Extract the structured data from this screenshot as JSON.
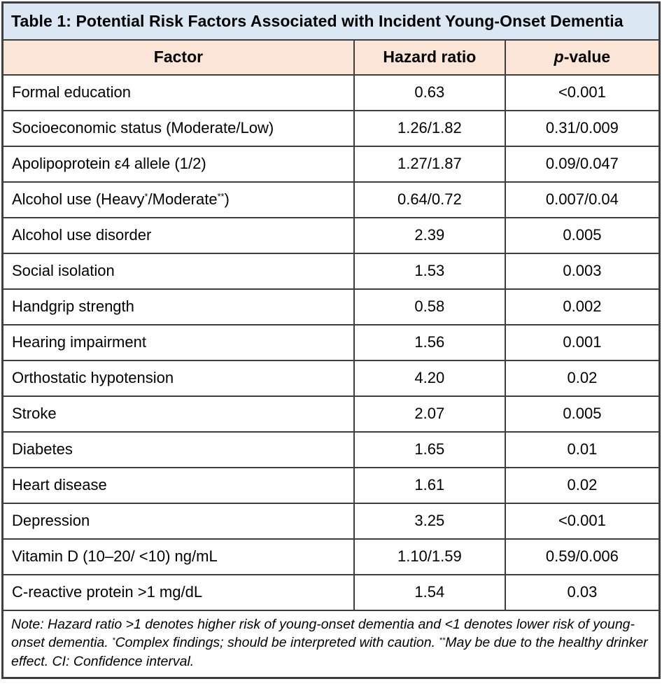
{
  "title": "Table 1: Potential Risk Factors Associated with Incident Young-Onset Dementia",
  "columns": {
    "factor": "Factor",
    "hazard": "Hazard ratio",
    "p_italic": "p",
    "p_rest": "-value"
  },
  "rows": [
    {
      "factor": "Formal education",
      "hazard": "0.63",
      "p": "<0.001"
    },
    {
      "factor": "Socioeconomic status (Moderate/Low)",
      "hazard": "1.26/1.82",
      "p": "0.31/0.009"
    },
    {
      "factor": "Apolipoprotein ε4 allele (1/2)",
      "hazard": "1.27/1.87",
      "p": "0.09/0.047"
    },
    {
      "factor": "Alcohol use (Heavy^*^/Moderate^**^)",
      "hazard": "0.64/0.72",
      "p": "0.007/0.04"
    },
    {
      "factor": "Alcohol use disorder",
      "hazard": "2.39",
      "p": "0.005"
    },
    {
      "factor": "Social isolation",
      "hazard": "1.53",
      "p": "0.003"
    },
    {
      "factor": "Handgrip strength",
      "hazard": "0.58",
      "p": "0.002"
    },
    {
      "factor": "Hearing impairment",
      "hazard": "1.56",
      "p": "0.001"
    },
    {
      "factor": "Orthostatic hypotension",
      "hazard": "4.20",
      "p": "0.02"
    },
    {
      "factor": "Stroke",
      "hazard": "2.07",
      "p": "0.005"
    },
    {
      "factor": "Diabetes",
      "hazard": "1.65",
      "p": "0.01"
    },
    {
      "factor": "Heart disease",
      "hazard": "1.61",
      "p": "0.02"
    },
    {
      "factor": "Depression",
      "hazard": "3.25",
      "p": "<0.001"
    },
    {
      "factor": "Vitamin D (10–20/ <10) ng/mL",
      "hazard": "1.10/1.59",
      "p": "0.59/0.006"
    },
    {
      "factor": "C-reactive protein >1 mg/dL",
      "hazard": "1.54",
      "p": "0.03"
    }
  ],
  "note": "Note: Hazard ratio >1 denotes higher risk of young-onset dementia and <1 denotes lower risk of young-onset dementia. ^*^Complex findings; should be interpreted with caution. ^**^May be due to the healthy drinker effect. CI: Confidence interval.",
  "colors": {
    "title_bg": "#dbe8f4",
    "header_bg": "#fbe5d6",
    "border": "#3f3f3f",
    "text": "#000000"
  }
}
